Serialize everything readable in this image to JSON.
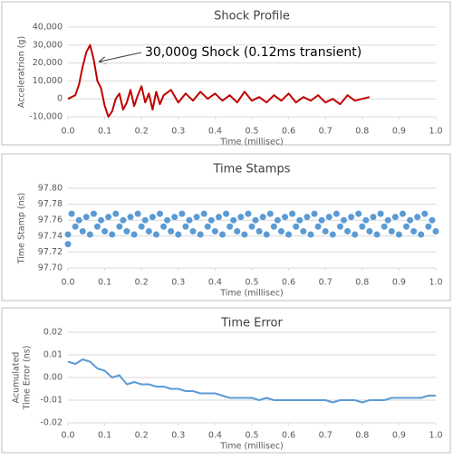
{
  "chart_data": [
    {
      "type": "line",
      "title": "Shock Profile",
      "ylabel": [
        "Acceleratrion (g)"
      ],
      "xlabel": "Time (millisec)",
      "color": "#c00000",
      "grid": true,
      "annotation": "30,000g Shock (0.12ms transient)",
      "xlim": [
        0,
        1
      ],
      "xticks": [
        {
          "value": 0,
          "label": "0.0"
        },
        0.1,
        0.2,
        0.3,
        0.4,
        0.5,
        0.6,
        0.7,
        0.8,
        0.9,
        {
          "value": 1,
          "label": "1.0"
        }
      ],
      "ylim": [
        -10000,
        40000
      ],
      "yticks": [
        {
          "value": -10000,
          "label": "-10,000"
        },
        0,
        {
          "value": 10000,
          "label": "10,000"
        },
        {
          "value": 20000,
          "label": "20,000"
        },
        {
          "value": 30000,
          "label": "30,000"
        },
        {
          "value": 40000,
          "label": "40,000"
        }
      ],
      "x": [
        0,
        0.02,
        0.03,
        0.04,
        0.05,
        0.06,
        0.07,
        0.08,
        0.09,
        0.1,
        0.11,
        0.12,
        0.13,
        0.14,
        0.15,
        0.16,
        0.17,
        0.18,
        0.19,
        0.2,
        0.21,
        0.22,
        0.23,
        0.24,
        0.25,
        0.26,
        0.28,
        0.3,
        0.32,
        0.34,
        0.36,
        0.38,
        0.4,
        0.42,
        0.44,
        0.46,
        0.48,
        0.5,
        0.52,
        0.54,
        0.56,
        0.58,
        0.6,
        0.62,
        0.64,
        0.66,
        0.68,
        0.7,
        0.72,
        0.74,
        0.76,
        0.78,
        0.8,
        0.82
      ],
      "values": [
        0,
        2000,
        8000,
        18000,
        26000,
        30000,
        22000,
        10000,
        6000,
        -4000,
        -10000,
        -7000,
        0,
        3000,
        -6000,
        -2000,
        5000,
        -4000,
        2000,
        7000,
        -2000,
        3000,
        -6000,
        4000,
        -3000,
        2000,
        5000,
        -2000,
        3000,
        -1000,
        4000,
        0,
        3000,
        -1000,
        2000,
        -2000,
        4000,
        -1000,
        1000,
        -2000,
        2000,
        -1000,
        3000,
        -2000,
        1000,
        -1000,
        2000,
        -2000,
        0,
        -3000,
        2000,
        -1000,
        0,
        1000
      ]
    },
    {
      "type": "scatter",
      "title": "Time Stamps",
      "ylabel": [
        "Time Stamp (ns)"
      ],
      "xlabel": "Time (millisec)",
      "color": "#5b9bd5",
      "grid": true,
      "xlim": [
        0,
        1
      ],
      "xticks": [
        {
          "value": 0,
          "label": "0.0"
        },
        0.1,
        0.2,
        0.3,
        0.4,
        0.5,
        0.6,
        0.7,
        0.8,
        0.9,
        {
          "value": 1,
          "label": "1.0"
        }
      ],
      "ylim": [
        97.7,
        97.8
      ],
      "yticks": [
        {
          "value": 97.7,
          "label": "97.70"
        },
        97.72,
        97.74,
        97.76,
        97.78,
        {
          "value": 97.8,
          "label": "97.80"
        }
      ],
      "x": [
        0,
        0,
        0.01,
        0.02,
        0.03,
        0.04,
        0.05,
        0.06,
        0.07,
        0.08,
        0.09,
        0.1,
        0.11,
        0.12,
        0.13,
        0.14,
        0.15,
        0.16,
        0.17,
        0.18,
        0.19,
        0.2,
        0.21,
        0.22,
        0.23,
        0.24,
        0.25,
        0.26,
        0.27,
        0.28,
        0.29,
        0.3,
        0.31,
        0.32,
        0.33,
        0.34,
        0.35,
        0.36,
        0.37,
        0.38,
        0.39,
        0.4,
        0.41,
        0.42,
        0.43,
        0.44,
        0.45,
        0.46,
        0.47,
        0.48,
        0.49,
        0.5,
        0.51,
        0.52,
        0.53,
        0.54,
        0.55,
        0.56,
        0.57,
        0.58,
        0.59,
        0.6,
        0.61,
        0.62,
        0.63,
        0.64,
        0.65,
        0.66,
        0.67,
        0.68,
        0.69,
        0.7,
        0.71,
        0.72,
        0.73,
        0.74,
        0.75,
        0.76,
        0.77,
        0.78,
        0.79,
        0.8,
        0.81,
        0.82,
        0.83,
        0.84,
        0.85,
        0.86,
        0.87,
        0.88,
        0.89,
        0.9,
        0.91,
        0.92,
        0.93,
        0.94,
        0.95,
        0.96,
        0.97,
        0.98,
        0.99,
        1
      ],
      "values": [
        97.73,
        97.742,
        97.768,
        97.752,
        97.76,
        97.746,
        97.764,
        97.742,
        97.768,
        97.752,
        97.76,
        97.746,
        97.764,
        97.742,
        97.768,
        97.752,
        97.76,
        97.746,
        97.764,
        97.742,
        97.768,
        97.752,
        97.76,
        97.746,
        97.764,
        97.742,
        97.768,
        97.752,
        97.76,
        97.746,
        97.764,
        97.742,
        97.768,
        97.752,
        97.76,
        97.746,
        97.764,
        97.742,
        97.768,
        97.752,
        97.76,
        97.746,
        97.764,
        97.742,
        97.768,
        97.752,
        97.76,
        97.746,
        97.764,
        97.742,
        97.768,
        97.752,
        97.76,
        97.746,
        97.764,
        97.742,
        97.768,
        97.752,
        97.76,
        97.746,
        97.764,
        97.742,
        97.768,
        97.752,
        97.76,
        97.746,
        97.764,
        97.742,
        97.768,
        97.752,
        97.76,
        97.746,
        97.764,
        97.742,
        97.768,
        97.752,
        97.76,
        97.746,
        97.764,
        97.742,
        97.768,
        97.752,
        97.76,
        97.746,
        97.764,
        97.742,
        97.768,
        97.752,
        97.76,
        97.746,
        97.764,
        97.742,
        97.768,
        97.752,
        97.76,
        97.746,
        97.764,
        97.742,
        97.768,
        97.752,
        97.76,
        97.746
      ]
    },
    {
      "type": "line",
      "title": "Time Error",
      "ylabel": [
        "Acumulated",
        "Time Error (ns)"
      ],
      "xlabel": "Time (millisec)",
      "color": "#5b9bd5",
      "grid": true,
      "xlim": [
        0,
        1
      ],
      "xticks": [
        {
          "value": 0,
          "label": "0.0"
        },
        0.1,
        0.2,
        0.3,
        0.4,
        0.5,
        0.6,
        0.7,
        0.8,
        0.9,
        {
          "value": 1,
          "label": "1.0"
        }
      ],
      "ylim": [
        -0.02,
        0.02
      ],
      "yticks": [
        -0.02,
        -0.01,
        {
          "value": 0,
          "label": "0.00"
        },
        0.01,
        0.02
      ],
      "x": [
        0,
        0.02,
        0.04,
        0.06,
        0.08,
        0.1,
        0.12,
        0.14,
        0.16,
        0.18,
        0.2,
        0.22,
        0.24,
        0.26,
        0.28,
        0.3,
        0.32,
        0.34,
        0.36,
        0.38,
        0.4,
        0.42,
        0.44,
        0.46,
        0.48,
        0.5,
        0.52,
        0.54,
        0.56,
        0.58,
        0.6,
        0.62,
        0.64,
        0.66,
        0.68,
        0.7,
        0.72,
        0.74,
        0.76,
        0.78,
        0.8,
        0.82,
        0.84,
        0.86,
        0.88,
        0.9,
        0.92,
        0.94,
        0.96,
        0.98,
        1
      ],
      "values": [
        0.007,
        0.006,
        0.008,
        0.007,
        0.004,
        0.003,
        0,
        0.001,
        -0.003,
        -0.002,
        -0.003,
        -0.003,
        -0.004,
        -0.004,
        -0.005,
        -0.005,
        -0.006,
        -0.006,
        -0.007,
        -0.007,
        -0.007,
        -0.008,
        -0.009,
        -0.009,
        -0.009,
        -0.009,
        -0.01,
        -0.009,
        -0.01,
        -0.01,
        -0.01,
        -0.01,
        -0.01,
        -0.01,
        -0.01,
        -0.01,
        -0.011,
        -0.01,
        -0.01,
        -0.01,
        -0.011,
        -0.01,
        -0.01,
        -0.01,
        -0.009,
        -0.009,
        -0.009,
        -0.009,
        -0.009,
        -0.008,
        -0.008
      ]
    }
  ]
}
